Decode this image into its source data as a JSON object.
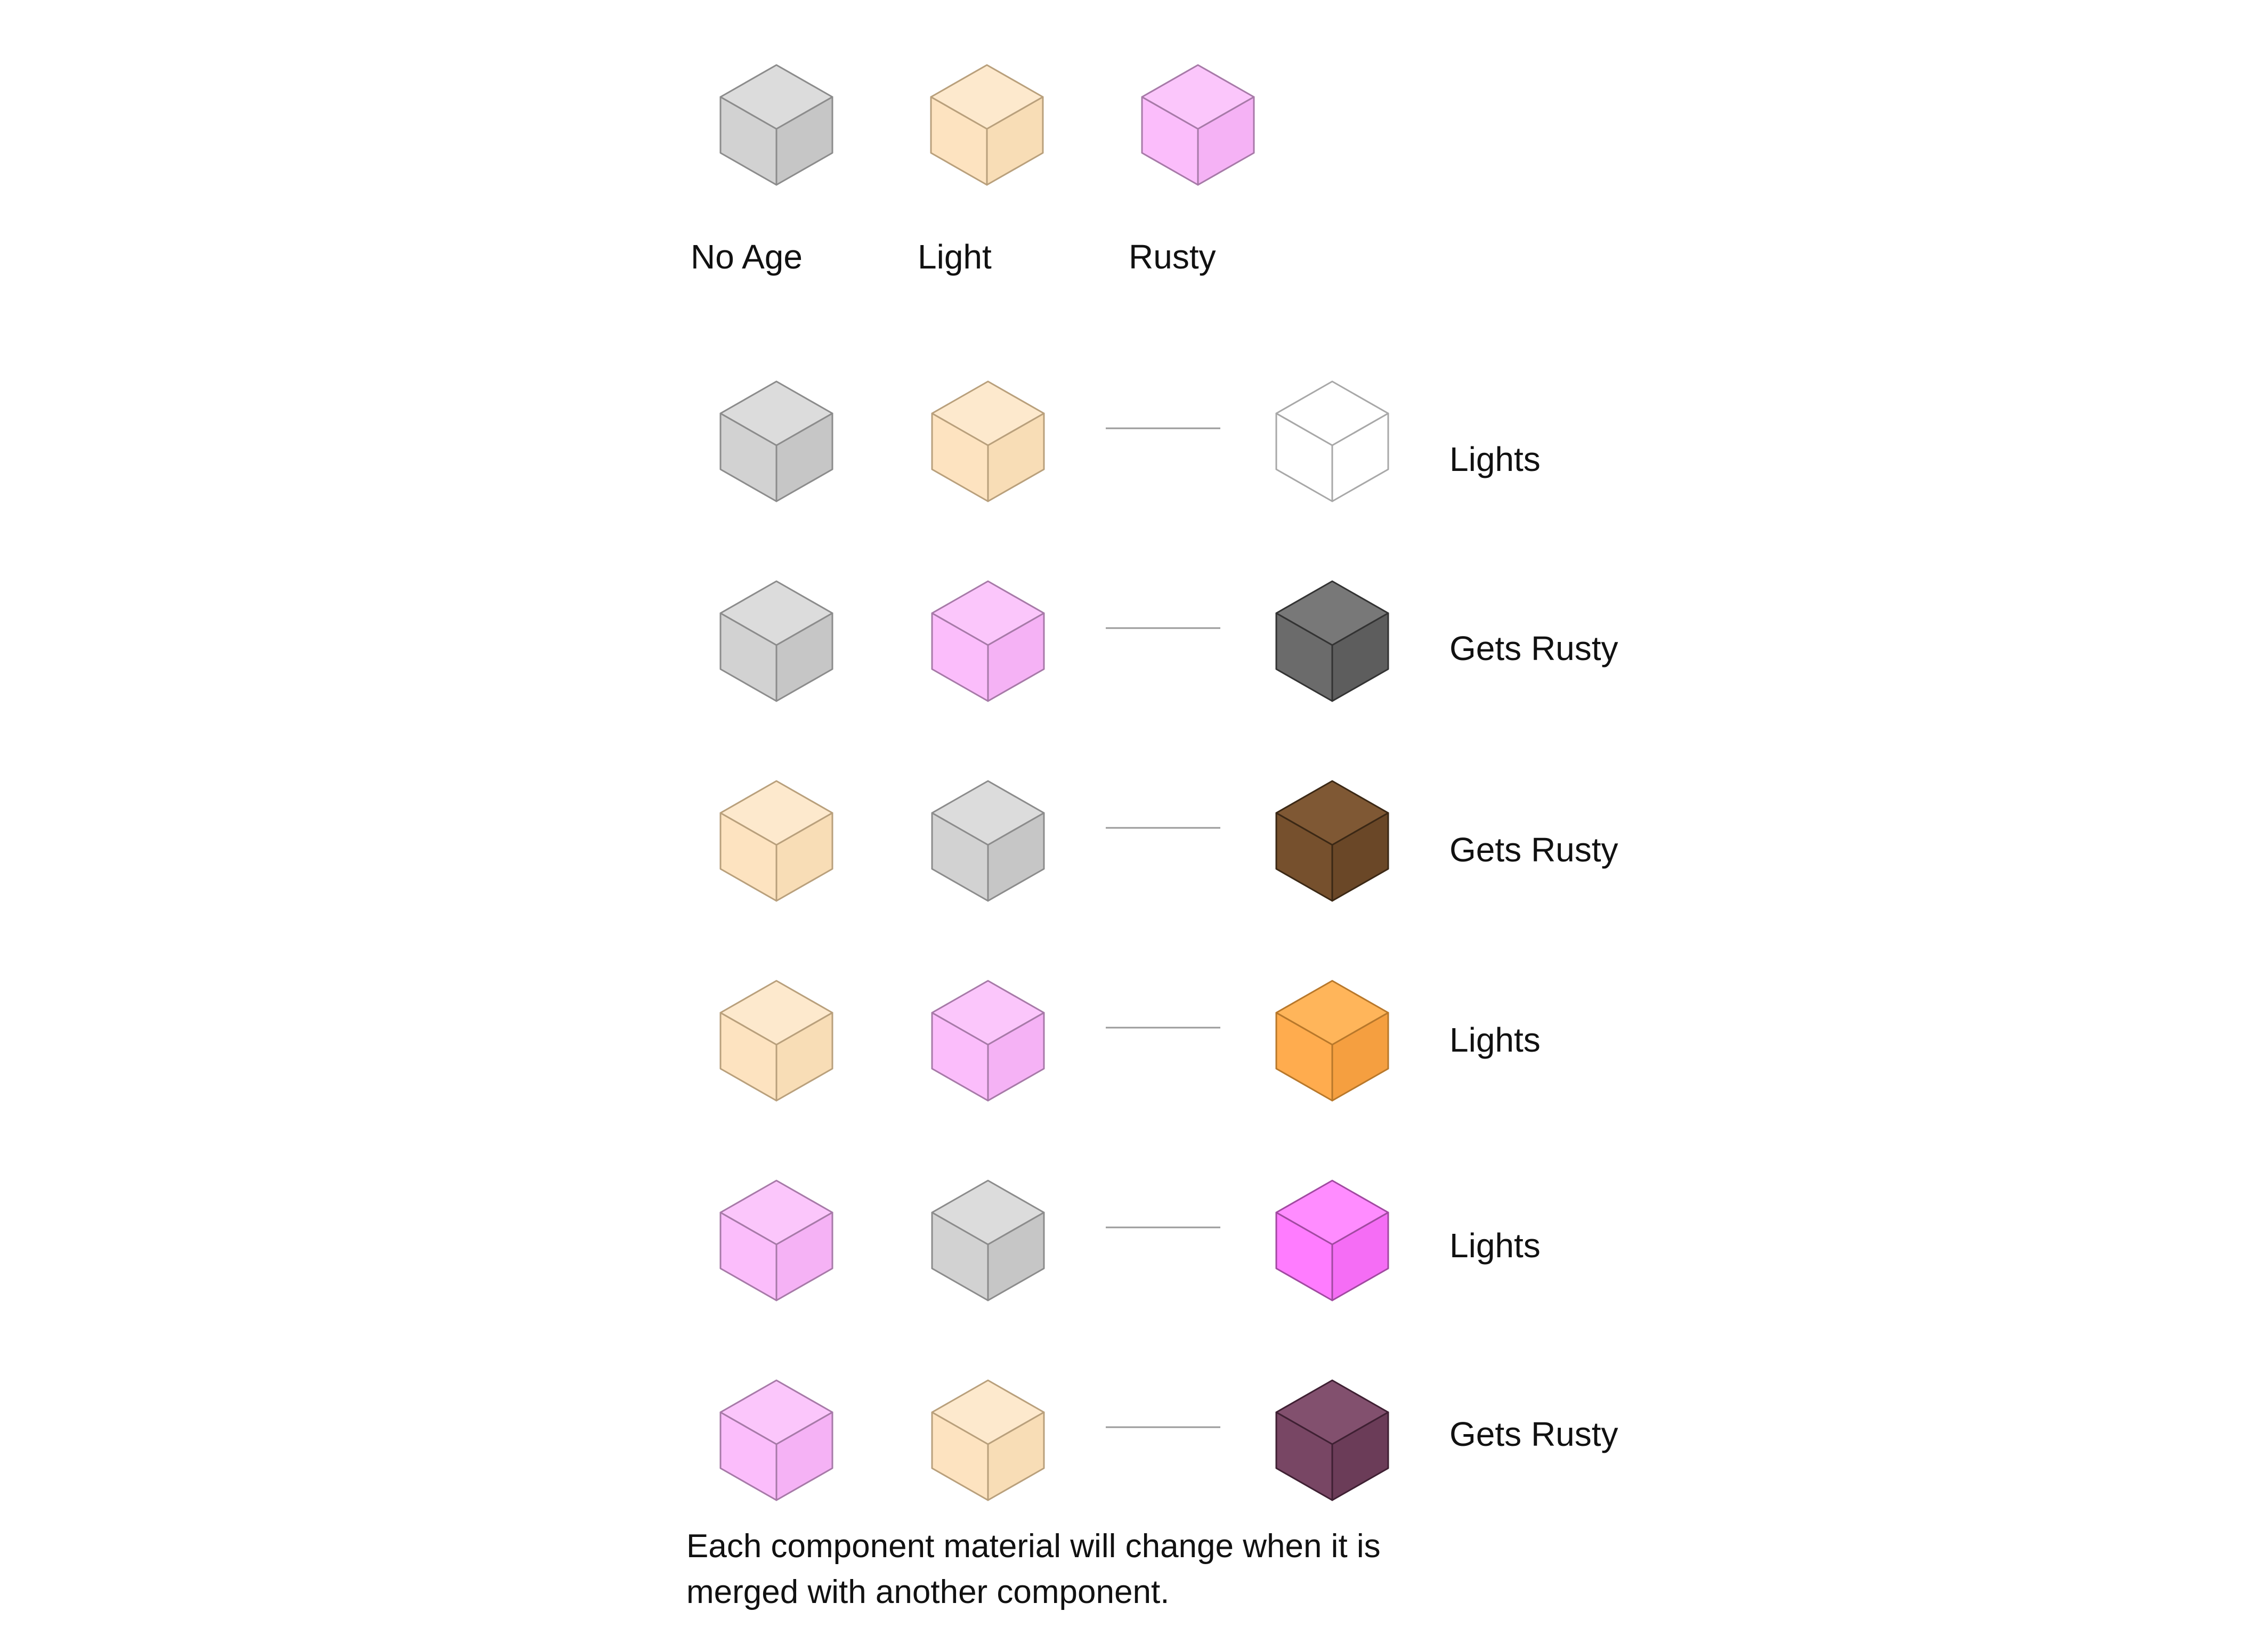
{
  "colors": {
    "gray": {
      "top": "#dcdcdc",
      "left": "#d2d2d2",
      "right": "#c6c6c6",
      "stroke": "#8c8c8c"
    },
    "light": {
      "top": "#fde9cd",
      "left": "#fde3c0",
      "right": "#f8ddb6",
      "stroke": "#b9a07c"
    },
    "rusty": {
      "top": "#fbc6fb",
      "left": "#fbbdfb",
      "right": "#f5b2f5",
      "stroke": "#a77aa8"
    },
    "white": {
      "top": "#ffffff",
      "left": "#ffffff",
      "right": "#ffffff",
      "stroke": "#a8a8a8"
    },
    "dark_gray": {
      "top": "#787878",
      "left": "#6b6b6b",
      "right": "#5d5d5d",
      "stroke": "#333333"
    },
    "brown": {
      "top": "#7f5834",
      "left": "#76502d",
      "right": "#6a4727",
      "stroke": "#3b2815"
    },
    "orange": {
      "top": "#ffb55a",
      "left": "#ffac4e",
      "right": "#f59f40",
      "stroke": "#b8782b"
    },
    "magenta": {
      "top": "#ff8cff",
      "left": "#ff7cff",
      "right": "#f56df5",
      "stroke": "#a14aa1"
    },
    "plum": {
      "top": "#82506e",
      "left": "#784664",
      "right": "#6b3c58",
      "stroke": "#3f2033"
    }
  },
  "legend": [
    {
      "color": "gray",
      "label": "No Age"
    },
    {
      "color": "light",
      "label": "Light"
    },
    {
      "color": "rusty",
      "label": "Rusty"
    }
  ],
  "combinations": [
    {
      "a": "gray",
      "b": "light",
      "result": "white",
      "label": "Lights"
    },
    {
      "a": "gray",
      "b": "rusty",
      "result": "dark_gray",
      "label": "Gets Rusty"
    },
    {
      "a": "light",
      "b": "gray",
      "result": "brown",
      "label": "Gets Rusty"
    },
    {
      "a": "light",
      "b": "rusty",
      "result": "orange",
      "label": "Lights"
    },
    {
      "a": "rusty",
      "b": "gray",
      "result": "magenta",
      "label": "Lights"
    },
    {
      "a": "rusty",
      "b": "light",
      "result": "plum",
      "label": "Gets Rusty"
    }
  ],
  "caption": {
    "line1": "Each component material will change when  it is",
    "line2": "merged with another component."
  }
}
